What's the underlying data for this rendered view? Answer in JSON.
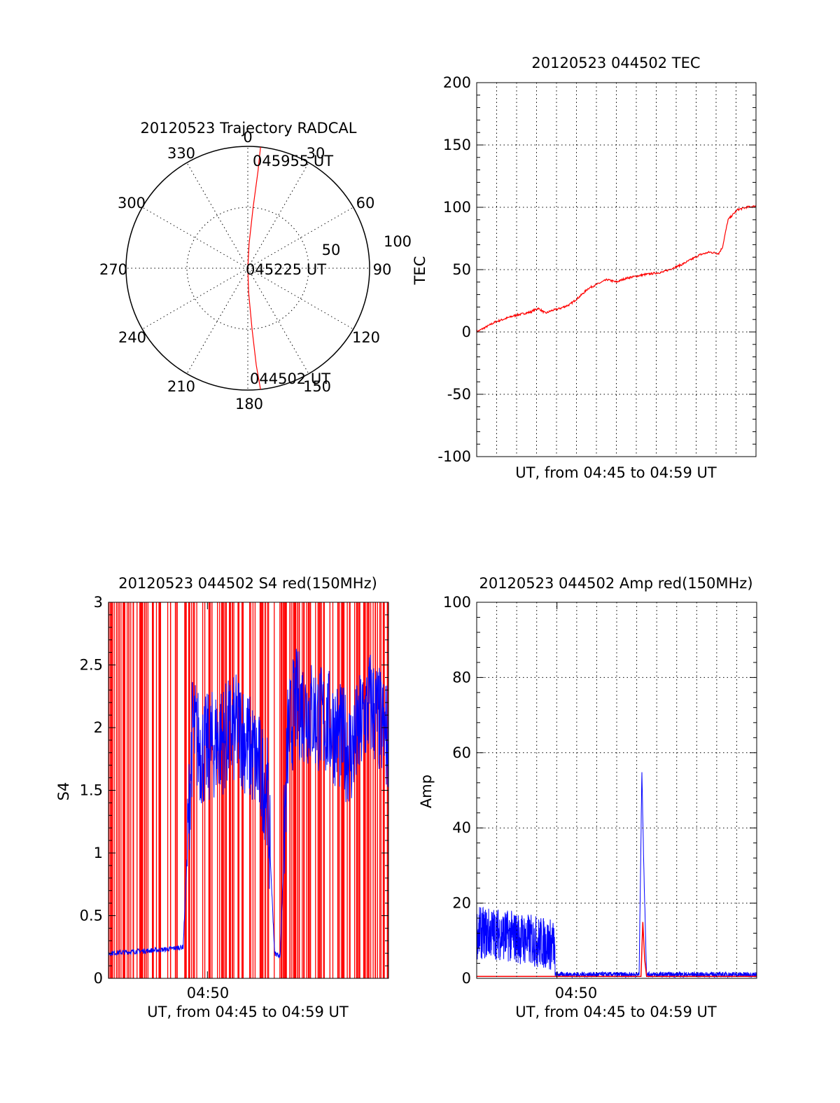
{
  "colors": {
    "red": "#ff0000",
    "blue": "#0000ff",
    "axis": "#000000"
  },
  "chart_data": [
    {
      "id": "trajectory",
      "type": "polar",
      "title": "20120523 Trajectory RADCAL",
      "radial_ticks": [
        "50",
        "100"
      ],
      "radial_range": [
        0,
        100
      ],
      "angle_labels": [
        "0",
        "30",
        "60",
        "90",
        "120",
        "150",
        "180",
        "210",
        "240",
        "270",
        "300",
        "330"
      ],
      "annotations": [
        "045955 UT",
        "045225 UT",
        "044502 UT"
      ],
      "series": [
        {
          "color": "red",
          "points": [
            [
              0,
              0
            ],
            [
              3,
              20
            ],
            [
              5,
              50
            ],
            [
              6,
              80
            ],
            [
              6,
              100
            ]
          ]
        },
        {
          "color": "red",
          "points": [
            [
              0,
              0
            ],
            [
              178,
              20
            ],
            [
              176,
              50
            ],
            [
              175,
              80
            ],
            [
              174,
              100
            ]
          ]
        }
      ]
    },
    {
      "id": "tec",
      "type": "line",
      "title": "20120523 044502 TEC",
      "xlabel": "UT, from 04:45 to 04:59 UT",
      "ylabel": "TEC",
      "ylim": [
        -100,
        200
      ],
      "yticks": [
        "200",
        "150",
        "100",
        "50",
        "0",
        "-50",
        "-100"
      ],
      "xlim": [
        0,
        15
      ],
      "series": [
        {
          "color": "red",
          "x": [
            0,
            1,
            2,
            2.9,
            3.3,
            3.7,
            4,
            4.5,
            5,
            5.5,
            6,
            7,
            7.5,
            8,
            9,
            10,
            11,
            12,
            12.5,
            13,
            13.2,
            13.5,
            14,
            14.5,
            15
          ],
          "y": [
            0,
            8,
            13,
            16,
            19,
            15,
            17,
            19,
            22,
            28,
            35,
            42,
            40,
            43,
            46,
            48,
            54,
            62,
            64,
            63,
            68,
            90,
            98,
            100,
            101
          ]
        }
      ]
    },
    {
      "id": "s4",
      "type": "line",
      "title": "20120523 044502 S4 red(150MHz)",
      "xlabel": "UT, from 04:45 to 04:59 UT",
      "ylabel": "S4",
      "ylim": [
        0,
        3
      ],
      "yticks": [
        "3",
        "2.5",
        "2",
        "1.5",
        "1",
        "0.5",
        "0"
      ],
      "xtick_label": "04:50",
      "xlim": [
        0,
        15
      ],
      "series": [
        {
          "name": "",
          "color": "red",
          "pattern": "saturated vertical spikes 0 to 3"
        },
        {
          "name": "",
          "color": "blue",
          "x": [
            0,
            1,
            2,
            3,
            4,
            4.5,
            5,
            6,
            7,
            8,
            8.5,
            8.9,
            9.2,
            9.6,
            10,
            11,
            12,
            13,
            14,
            15
          ],
          "y": [
            0.2,
            0.21,
            0.22,
            0.23,
            0.25,
            2.0,
            1.8,
            1.9,
            2.0,
            1.7,
            1.5,
            0.2,
            0.18,
            1.9,
            2.2,
            2.1,
            2.0,
            1.8,
            2.2,
            1.9
          ]
        }
      ]
    },
    {
      "id": "amp",
      "type": "line",
      "title": "20120523 044502 Amp red(150MHz)",
      "xlabel": "UT, from 04:45 to 04:59 UT",
      "ylabel": "Amp",
      "ylim": [
        0,
        100
      ],
      "yticks": [
        "100",
        "80",
        "60",
        "40",
        "20",
        "0"
      ],
      "xtick_label": "04:50",
      "xlim": [
        0,
        15
      ],
      "series": [
        {
          "name": "",
          "color": "blue",
          "x": [
            0,
            1,
            2,
            3,
            4,
            4.15,
            4.2,
            8.7,
            8.85,
            8.95,
            9.1,
            15
          ],
          "y": [
            12,
            12,
            11,
            10,
            9,
            9,
            1,
            1,
            55,
            30,
            1,
            1
          ]
        },
        {
          "name": "",
          "color": "red",
          "x": [
            0,
            4,
            4.2,
            8.8,
            8.9,
            9.0,
            9.1,
            15
          ],
          "y": [
            0.5,
            0.5,
            0.5,
            0.5,
            15,
            5,
            0.5,
            0.5
          ]
        }
      ]
    }
  ]
}
